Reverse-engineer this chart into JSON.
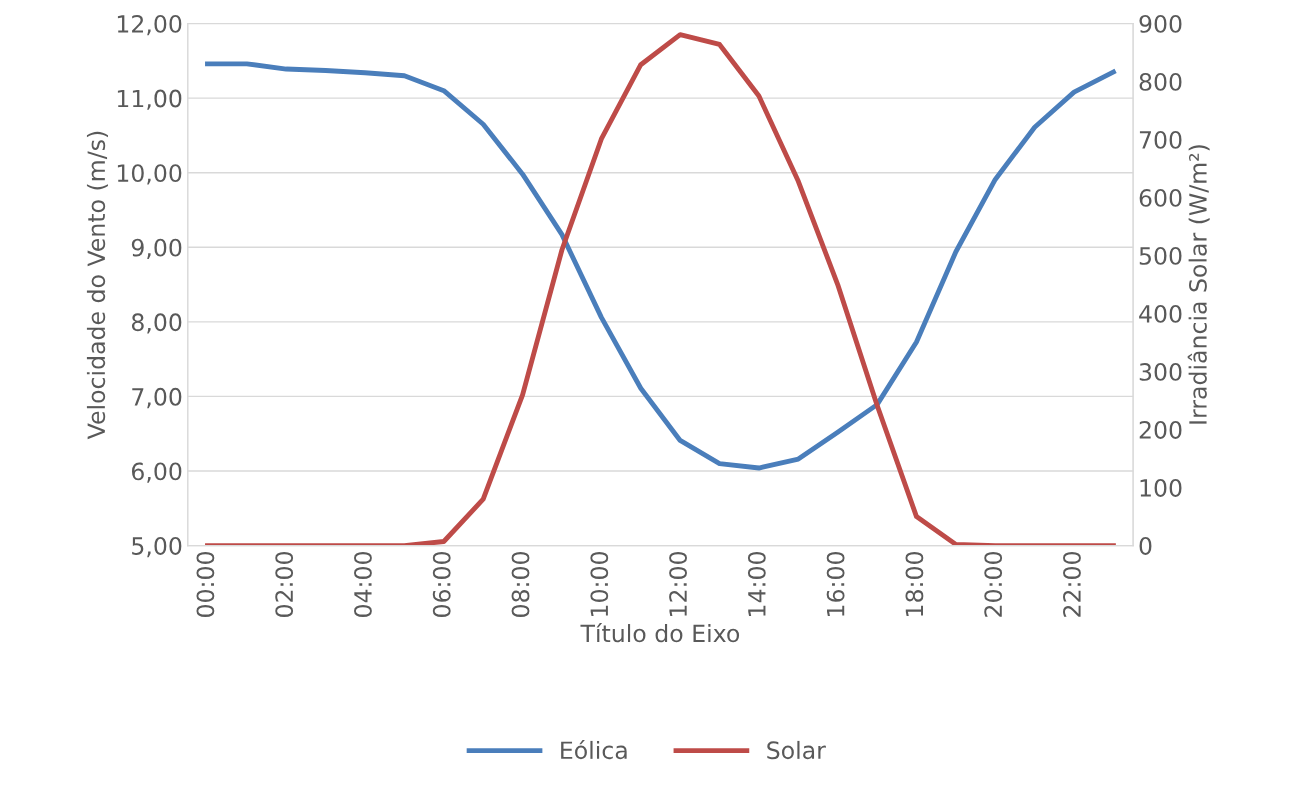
{
  "chart_data": {
    "type": "line",
    "xlabel": "Título do Eixo",
    "ylabel": "Velocidade do Vento (m/s)",
    "y2label": "Irradiância Solar (W/m²)",
    "categories": [
      "00:00",
      null,
      "02:00",
      null,
      "04:00",
      null,
      "06:00",
      null,
      "08:00",
      null,
      "10:00",
      null,
      "12:00",
      null,
      "14:00",
      null,
      "16:00",
      null,
      "18:00",
      null,
      "20:00",
      null,
      "22:00",
      null
    ],
    "series": [
      {
        "name": "Eólica",
        "color": "#4a7ebb",
        "values": [
          11.46,
          11.46,
          11.39,
          11.37,
          11.34,
          11.3,
          11.1,
          10.65,
          9.98,
          9.17,
          8.06,
          7.11,
          6.41,
          6.1,
          6.04,
          6.16,
          6.52,
          6.89,
          7.73,
          8.94,
          9.91,
          10.61,
          11.08,
          11.35
        ]
      },
      {
        "name": "Solar",
        "color": "#be4b48",
        "axis": "y2",
        "values": [
          0,
          0,
          0,
          0,
          0,
          0,
          7,
          80,
          260,
          510,
          701,
          829,
          881,
          864,
          775,
          628,
          450,
          242,
          50,
          2,
          0,
          0,
          0,
          0
        ]
      }
    ],
    "ylim": [
      5,
      12
    ],
    "yticks": [
      {
        "value": 5,
        "label": "5,00"
      },
      {
        "value": 6,
        "label": "6,00"
      },
      {
        "value": 7,
        "label": "7,00"
      },
      {
        "value": 8,
        "label": "8,00"
      },
      {
        "value": 9,
        "label": "9,00"
      },
      {
        "value": 10,
        "label": "10,00"
      },
      {
        "value": 11,
        "label": "11,00"
      },
      {
        "value": 12,
        "label": "12,00"
      }
    ],
    "y2lim": [
      0,
      900
    ],
    "y2ticks": [
      0,
      100,
      200,
      300,
      400,
      500,
      600,
      700,
      800,
      900
    ],
    "grid": "y",
    "legend": "bottom",
    "marker": "none",
    "line_style": "solid"
  }
}
